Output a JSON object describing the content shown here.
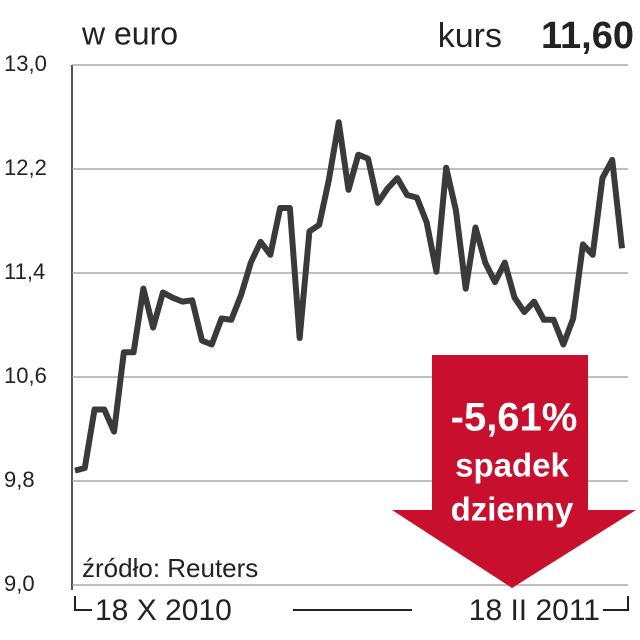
{
  "chart_data": {
    "type": "line",
    "unit_label": "w euro",
    "price_label": "kurs",
    "price": "11,60",
    "change_label": "-5,61%",
    "change_word1": "spadek",
    "change_word2": "dzienny",
    "source": "źródło: Reuters",
    "categories": [
      "18 X 2010",
      null,
      null,
      null,
      null,
      null,
      null,
      null,
      null,
      null,
      null,
      null,
      null,
      null,
      null,
      null,
      null,
      null,
      null,
      null,
      null,
      null,
      null,
      null,
      null,
      null,
      null,
      null,
      null,
      null,
      null,
      null,
      null,
      null,
      null,
      null,
      null,
      null,
      null,
      null,
      null,
      null,
      null,
      null,
      null,
      null,
      null,
      null,
      null,
      null,
      null,
      null,
      null,
      null,
      null,
      null,
      "18 II 2011"
    ],
    "series": [
      {
        "name": "kurs",
        "color": "#3a3a3a",
        "values": [
          9.88,
          9.9,
          10.35,
          10.35,
          10.18,
          10.79,
          10.79,
          11.28,
          10.98,
          11.25,
          11.21,
          11.18,
          11.19,
          10.88,
          10.85,
          11.05,
          11.04,
          11.23,
          11.48,
          11.64,
          11.54,
          11.9,
          11.9,
          10.9,
          11.72,
          11.77,
          12.12,
          12.56,
          12.04,
          12.31,
          12.28,
          11.94,
          12.05,
          12.13,
          12.0,
          11.98,
          11.79,
          11.41,
          12.21,
          11.88,
          11.28,
          11.75,
          11.48,
          11.33,
          11.48,
          11.21,
          11.1,
          11.18,
          11.04,
          11.04,
          10.85,
          11.05,
          11.62,
          11.54,
          12.13,
          12.27,
          11.59
        ]
      }
    ],
    "ylim": [
      9.0,
      13.0
    ],
    "yticks": [
      {
        "value": 9.0,
        "label": "9,0"
      },
      {
        "value": 9.8,
        "label": "9,8"
      },
      {
        "value": 10.6,
        "label": "10,6"
      },
      {
        "value": 11.4,
        "label": "11,4"
      },
      {
        "value": 12.2,
        "label": "12,2"
      },
      {
        "value": 13.0,
        "label": "13,0"
      }
    ],
    "grid": true
  }
}
